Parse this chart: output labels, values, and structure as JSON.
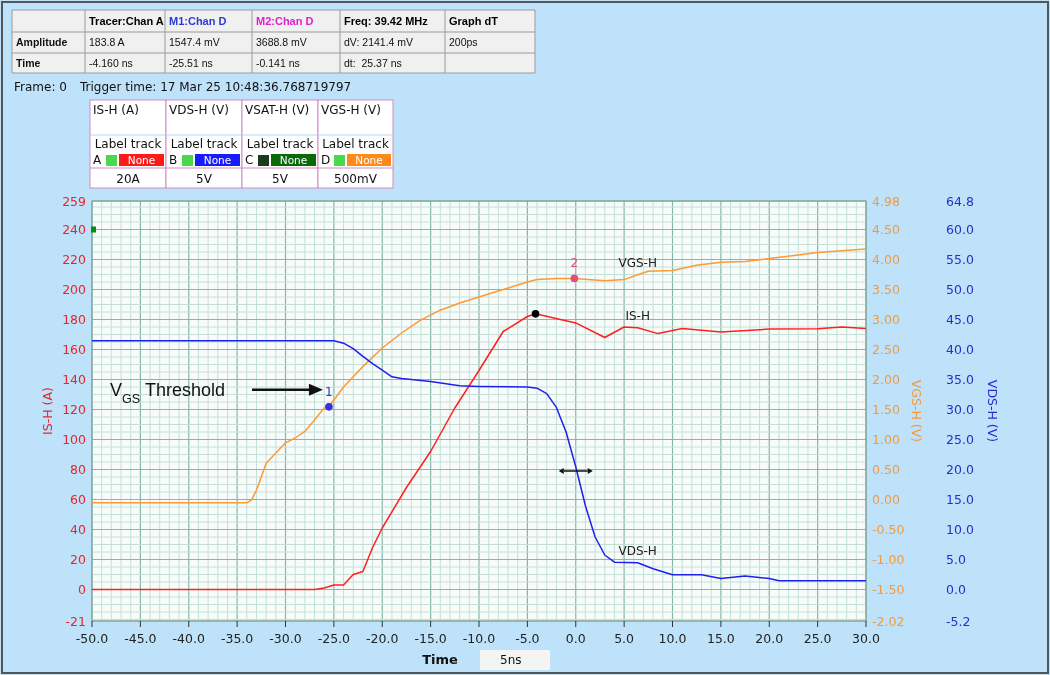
{
  "chart_data": {
    "type": "line",
    "xlabel": "Time",
    "ylabel": "IS-H (A)",
    "y2label": "VGS-H (V)",
    "y3label": "VDS-H (V)",
    "xlim": [
      -50,
      30
    ],
    "xticks": [
      {
        "value": -50,
        "label": "-50.0"
      },
      {
        "value": -45,
        "label": "-45.0"
      },
      {
        "value": -40,
        "label": "-40.0"
      },
      {
        "value": -35,
        "label": "-35.0"
      },
      {
        "value": -30,
        "label": "-30.0"
      },
      {
        "value": -25,
        "label": "-25.0"
      },
      {
        "value": -20,
        "label": "-20.0"
      },
      {
        "value": -15,
        "label": "-15.0"
      },
      {
        "value": -10,
        "label": "-10.0"
      },
      {
        "value": -5,
        "label": "-5.0"
      },
      {
        "value": 0,
        "label": "0.0"
      },
      {
        "value": 5,
        "label": "5.0"
      },
      {
        "value": 10,
        "label": "10.0"
      },
      {
        "value": 15,
        "label": "15.0"
      },
      {
        "value": 20,
        "label": "20.0"
      },
      {
        "value": 25,
        "label": "25.0"
      },
      {
        "value": 30,
        "label": "30.0"
      }
    ],
    "ylim": [
      -21,
      259
    ],
    "yticks": [
      -21,
      0,
      20,
      40,
      60,
      80,
      100,
      120,
      140,
      160,
      180,
      200,
      220,
      240,
      259
    ],
    "y2lim": [
      -2.02,
      4.98
    ],
    "y2ticks": [
      -2.02,
      {
        "value": -1.5,
        "label": "-1.50"
      },
      {
        "value": -1,
        "label": "-1.00"
      },
      {
        "value": -0.5,
        "label": "-0.50"
      },
      {
        "value": 0,
        "label": "0.00"
      },
      {
        "value": 0.5,
        "label": "0.50"
      },
      {
        "value": 1,
        "label": "1.00"
      },
      {
        "value": 1.5,
        "label": "1.50"
      },
      {
        "value": 2,
        "label": "2.00"
      },
      {
        "value": 2.5,
        "label": "2.50"
      },
      {
        "value": 3,
        "label": "3.00"
      },
      {
        "value": 3.5,
        "label": "3.50"
      },
      {
        "value": 4,
        "label": "4.00"
      },
      {
        "value": 4.5,
        "label": "4.50"
      },
      4.98
    ],
    "y3lim": [
      -5.2,
      64.8
    ],
    "y3ticks": [
      -5.2,
      {
        "value": 0,
        "label": "0.0"
      },
      {
        "value": 5,
        "label": "5.0"
      },
      {
        "value": 10,
        "label": "10.0"
      },
      {
        "value": 15,
        "label": "15.0"
      },
      {
        "value": 20,
        "label": "20.0"
      },
      {
        "value": 25,
        "label": "25.0"
      },
      {
        "value": 30,
        "label": "30.0"
      },
      {
        "value": 35,
        "label": "35.0"
      },
      {
        "value": 40,
        "label": "40.0"
      },
      {
        "value": 45,
        "label": "45.0"
      },
      {
        "value": 50,
        "label": "50.0"
      },
      {
        "value": 55,
        "label": "55.0"
      },
      {
        "value": 60,
        "label": "60.0"
      },
      64.8
    ],
    "grid": true,
    "series": [
      {
        "name": "IS-H",
        "color": "#ff2020",
        "x": [
          -50,
          -27,
          -26,
          -25,
          -24,
          -23,
          -22,
          -21,
          -20,
          -17.5,
          -15,
          -12.5,
          -10,
          -7.5,
          -5,
          -4.16,
          0,
          3,
          5,
          6.4,
          8.5,
          11,
          15,
          20,
          25,
          27.5,
          30
        ],
        "values": [
          0,
          0,
          1,
          3,
          3,
          10,
          12,
          28,
          41,
          68,
          92,
          121,
          146,
          172,
          182,
          183.8,
          177.7,
          168,
          175,
          174.5,
          170.6,
          174,
          171.7,
          173.6,
          173.8,
          175,
          174
        ]
      },
      {
        "name": "VGS-H",
        "axis": "y2",
        "color": "#ff9933",
        "x": [
          -50,
          -34,
          -33.5,
          -33,
          -32,
          -31,
          -30,
          -29,
          -28,
          -27,
          -26,
          -25.51,
          -24,
          -22,
          -20,
          -18,
          -16,
          -14,
          -12,
          -10,
          -7,
          -5,
          -4,
          -2,
          -0.14,
          3,
          5,
          6.4,
          7.5,
          10,
          12.5,
          15,
          17.5,
          20,
          25,
          30
        ],
        "values": [
          -0.05,
          -0.05,
          0,
          0.16,
          0.61,
          0.78,
          0.95,
          1.03,
          1.14,
          1.33,
          1.53,
          1.55,
          1.88,
          2.22,
          2.53,
          2.78,
          3,
          3.16,
          3.28,
          3.38,
          3.53,
          3.63,
          3.67,
          3.69,
          3.69,
          3.65,
          3.67,
          3.75,
          3.81,
          3.82,
          3.91,
          3.96,
          3.97,
          4.02,
          4.12,
          4.18
        ]
      },
      {
        "name": "VDS-H",
        "axis": "y3",
        "color": "#2020ee",
        "x": [
          -50,
          -25,
          -24,
          -23,
          -22,
          -21,
          -20,
          -19,
          -18,
          -15,
          -12,
          -10,
          -5,
          -4,
          -3,
          -2,
          -1,
          0,
          1,
          2,
          3,
          4,
          6.4,
          8,
          10,
          13,
          15,
          17.5,
          20,
          21,
          25,
          30
        ],
        "values": [
          41.5,
          41.5,
          41.1,
          40.2,
          38.9,
          37.7,
          36.6,
          35.5,
          35.2,
          34.7,
          34,
          33.9,
          33.8,
          33.6,
          32.7,
          30.4,
          26.3,
          20.5,
          14,
          8.8,
          5.8,
          4.6,
          4.5,
          3.5,
          2.5,
          2.5,
          1.9,
          2.3,
          1.9,
          1.5,
          1.5,
          1.5
        ]
      },
      {
        "type": "scatter",
        "marker": "circle",
        "axis": "y2",
        "name": "1",
        "color": "#3a2ee0",
        "x": [
          -25.51
        ],
        "values": [
          1.55
        ]
      },
      {
        "type": "scatter",
        "marker": "circle",
        "axis": "y2",
        "name": "2",
        "color": "#e0507a",
        "x": [
          -0.141
        ],
        "values": [
          3.69
        ]
      },
      {
        "type": "scatter",
        "marker": "circle",
        "color": "#000000",
        "x": [
          -4.16
        ],
        "values": [
          183.8
        ]
      }
    ],
    "annotations": [
      "Tracer:Chan A",
      "M1:Chan D",
      "M2:Chan D",
      "Freq: 39.42 MHz",
      "Graph dT",
      "Amplitude",
      "183.8 A",
      "1547.4 mV",
      "3688.8 mV",
      "dV: 2141.4 mV",
      "200ps",
      "Time",
      "-4.160 ns",
      "-25.51 ns",
      "-0.141 ns",
      "dt:  25.37 ns",
      "Frame: 0",
      "Trigger time: 17 Mar 25 10:48:36.768719797",
      "IS-H (A)",
      "VDS-H (V)",
      "VSAT-H (V)",
      "VGS-H (V)",
      "Label track",
      "Label track",
      "Label track",
      "Label track",
      "A",
      "B",
      "C",
      "D",
      "None",
      "None",
      "None",
      "None",
      "20A",
      "5V",
      "5V",
      "500mV",
      "5ns",
      "V$_{GS}$ Threshold"
    ]
  }
}
